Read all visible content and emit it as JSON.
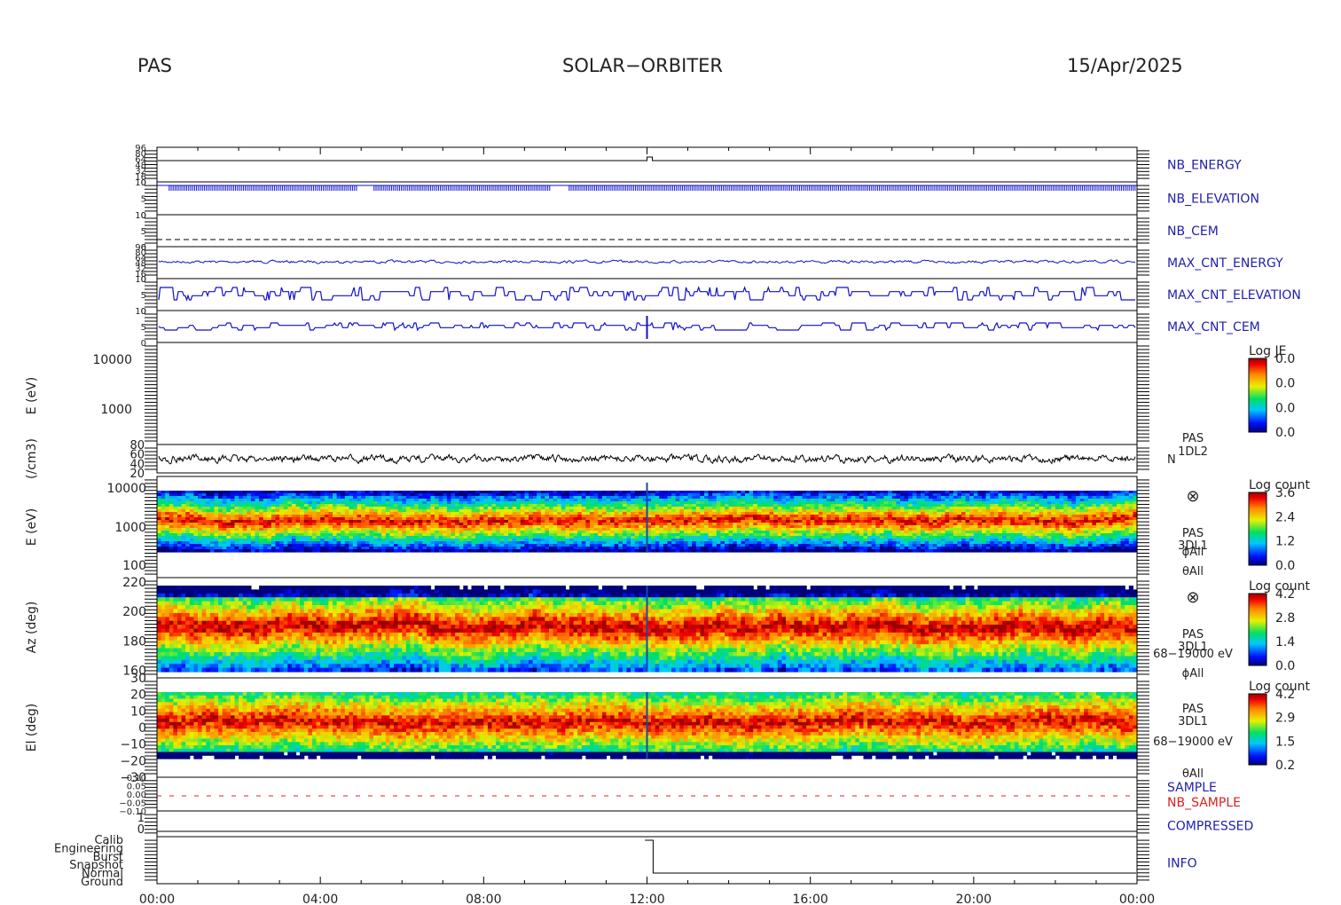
{
  "header": {
    "left": "PAS",
    "center": "SOLAR−ORBITER",
    "right": "15/Apr/2025"
  },
  "x_ticks": [
    "00:00",
    "04:00",
    "08:00",
    "12:00",
    "16:00",
    "20:00",
    "00:00"
  ],
  "colors": {
    "line_blue": "#1010cc",
    "label_blue": "#2020b0",
    "label_red": "#dd2020",
    "line_black": "#000000"
  },
  "chart_data": [
    {
      "type": "line",
      "right_label": "NB_ENERGY",
      "y_ticks": [
        "96",
        "80",
        "64",
        "48",
        "32",
        "16",
        "0"
      ],
      "event_step_hour": 12.0
    },
    {
      "type": "line",
      "right_label": "NB_ELEVATION",
      "y_ticks": [
        "10",
        "5",
        "0"
      ],
      "gaps_hours": [
        [
          4.9,
          5.3
        ],
        [
          9.65,
          10.05
        ]
      ]
    },
    {
      "type": "line",
      "right_label": "NB_CEM",
      "y_ticks": [
        "10",
        "5",
        "0"
      ]
    },
    {
      "type": "line",
      "right_label": "MAX_CNT_ENERGY",
      "y_ticks": [
        "96",
        "80",
        "64",
        "48",
        "32",
        "16",
        "0"
      ]
    },
    {
      "type": "line",
      "right_label": "MAX_CNT_ELEVATION",
      "y_ticks": [
        "10",
        "5",
        "0"
      ]
    },
    {
      "type": "line",
      "right_label": "MAX_CNT_CEM",
      "y_ticks": [
        "10",
        "5",
        "0"
      ]
    },
    {
      "type": "heatmap",
      "ylabel": "E (eV)",
      "y_ticks": [
        "10000",
        "1000"
      ],
      "colorbar": {
        "title": "Log JE",
        "ticks": [
          "0.0",
          "0.0",
          "0.0",
          "0.0"
        ]
      },
      "empty": true
    },
    {
      "type": "line",
      "ylabel": "(/cm3)",
      "y_ticks": [
        "80",
        "60",
        "40",
        "20"
      ],
      "ylim": [
        20,
        80
      ],
      "right_labels": [
        "PAS",
        "1DL2",
        "N"
      ]
    },
    {
      "type": "heatmap",
      "ylabel": "E (eV)",
      "y_ticks": [
        "10000",
        "1000",
        "100"
      ],
      "colorbar": {
        "title": "Log count",
        "ticks": [
          "3.6",
          "2.4",
          "1.2",
          "0.0"
        ]
      },
      "right_labels": [
        "⊗",
        "PAS",
        "3DL1",
        "ϕAll",
        "θAll"
      ]
    },
    {
      "type": "heatmap",
      "ylabel": "Az (deg)",
      "y_ticks": [
        "220",
        "200",
        "180",
        "160"
      ],
      "ylim": [
        155,
        223
      ],
      "colorbar": {
        "title": "Log count",
        "ticks": [
          "4.2",
          "2.8",
          "1.4",
          "0.0"
        ]
      },
      "right_labels": [
        "⊗",
        "PAS",
        "3DL1",
        "68−19000 eV",
        "ϕAll"
      ]
    },
    {
      "type": "heatmap",
      "ylabel": "El (deg)",
      "y_ticks": [
        "30",
        "20",
        "10",
        "0",
        "−10",
        "−20",
        "−30"
      ],
      "ylim": [
        -30,
        30
      ],
      "colorbar": {
        "title": "Log count",
        "ticks": [
          "4.2",
          "2.9",
          "1.5",
          "0.2"
        ]
      },
      "right_labels": [
        "PAS",
        "3DL1",
        "68−19000 eV",
        "θAll"
      ]
    },
    {
      "type": "line",
      "right_labels": [
        "SAMPLE",
        "NB_SAMPLE"
      ],
      "y_ticks": [
        "0.10",
        "0.05",
        "0.00",
        "−0.05",
        "−0.10"
      ]
    },
    {
      "type": "line",
      "right_label": "COMPRESSED",
      "y_ticks": [
        "1",
        "0"
      ]
    },
    {
      "type": "line",
      "right_label": "INFO",
      "y_ticks": [
        "Calib",
        "Engineering",
        "Burst",
        "Snapshot",
        "Normal",
        "Ground"
      ],
      "event_step_hour": 12.0
    }
  ]
}
